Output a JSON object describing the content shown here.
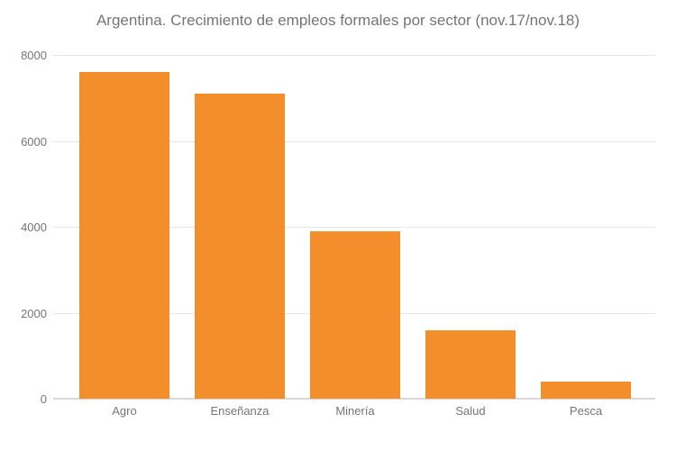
{
  "chart_data": {
    "type": "bar",
    "title": "Argentina. Crecimiento de empleos formales por sector (nov.17/nov.18)",
    "categories": [
      "Agro",
      "Enseñanza",
      "Minería",
      "Salud",
      "Pesca"
    ],
    "values": [
      7600,
      7100,
      3900,
      1600,
      400
    ],
    "xlabel": "",
    "ylabel": "",
    "ylim": [
      0,
      8000
    ],
    "yticks": [
      0,
      2000,
      4000,
      6000,
      8000
    ],
    "grid": true,
    "legend": false,
    "colors": {
      "bar": "#F28E2B",
      "title_text": "#757575",
      "axis_text": "#757575",
      "gridline": "#E6E6E6",
      "baseline": "#D9D9D9",
      "background": "#FFFFFF"
    }
  }
}
